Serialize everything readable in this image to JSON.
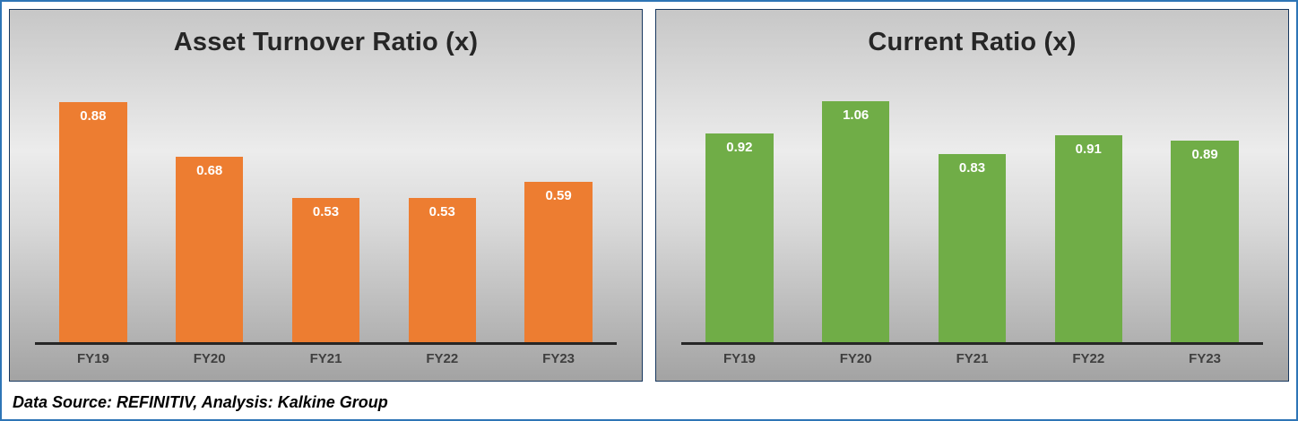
{
  "footer": {
    "source_text": "Data Source: REFINITIV, Analysis: Kalkine Group"
  },
  "colors": {
    "left_bar": "#ED7D31",
    "right_bar": "#70AD47",
    "outer_border": "#2E75B6",
    "panel_border": "#17375E"
  },
  "chart_data": [
    {
      "type": "bar",
      "title": "Asset Turnover Ratio (x)",
      "categories": [
        "FY19",
        "FY20",
        "FY21",
        "FY22",
        "FY23"
      ],
      "values": [
        0.88,
        0.68,
        0.53,
        0.53,
        0.59
      ],
      "labels": [
        "0.88",
        "0.68",
        "0.53",
        "0.53",
        "0.59"
      ],
      "bar_color": "#ED7D31",
      "xlabel": "",
      "ylabel": "",
      "ylim": [
        0,
        1.0
      ],
      "grid": false,
      "legend": "none"
    },
    {
      "type": "bar",
      "title": "Current Ratio (x)",
      "categories": [
        "FY19",
        "FY20",
        "FY21",
        "FY22",
        "FY23"
      ],
      "values": [
        0.92,
        1.06,
        0.83,
        0.91,
        0.89
      ],
      "labels": [
        "0.92",
        "1.06",
        "0.83",
        "0.91",
        "0.89"
      ],
      "bar_color": "#70AD47",
      "xlabel": "",
      "ylabel": "",
      "ylim": [
        0,
        1.2
      ],
      "grid": false,
      "legend": "none"
    }
  ]
}
